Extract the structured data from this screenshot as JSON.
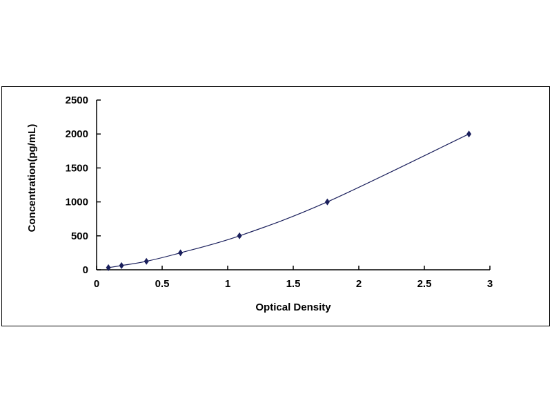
{
  "chart_data": {
    "type": "scatter",
    "title": "",
    "xlabel": "Optical Density",
    "ylabel": "Concentration(pg/mL)",
    "xlim": [
      0,
      3
    ],
    "ylim": [
      0,
      2500
    ],
    "xticks": [
      "0",
      "0.5",
      "1",
      "1.5",
      "2",
      "2.5",
      "3"
    ],
    "yticks": [
      "0",
      "500",
      "1000",
      "1500",
      "2000",
      "2500"
    ],
    "grid": false,
    "marker_color": "#1a1f5c",
    "line_color": "#1a1f5c",
    "fit": "smooth curve",
    "x": [
      0.09,
      0.19,
      0.38,
      0.64,
      1.09,
      1.76,
      2.84
    ],
    "y": [
      31.25,
      62.5,
      125,
      250,
      500,
      1000,
      2000
    ]
  }
}
